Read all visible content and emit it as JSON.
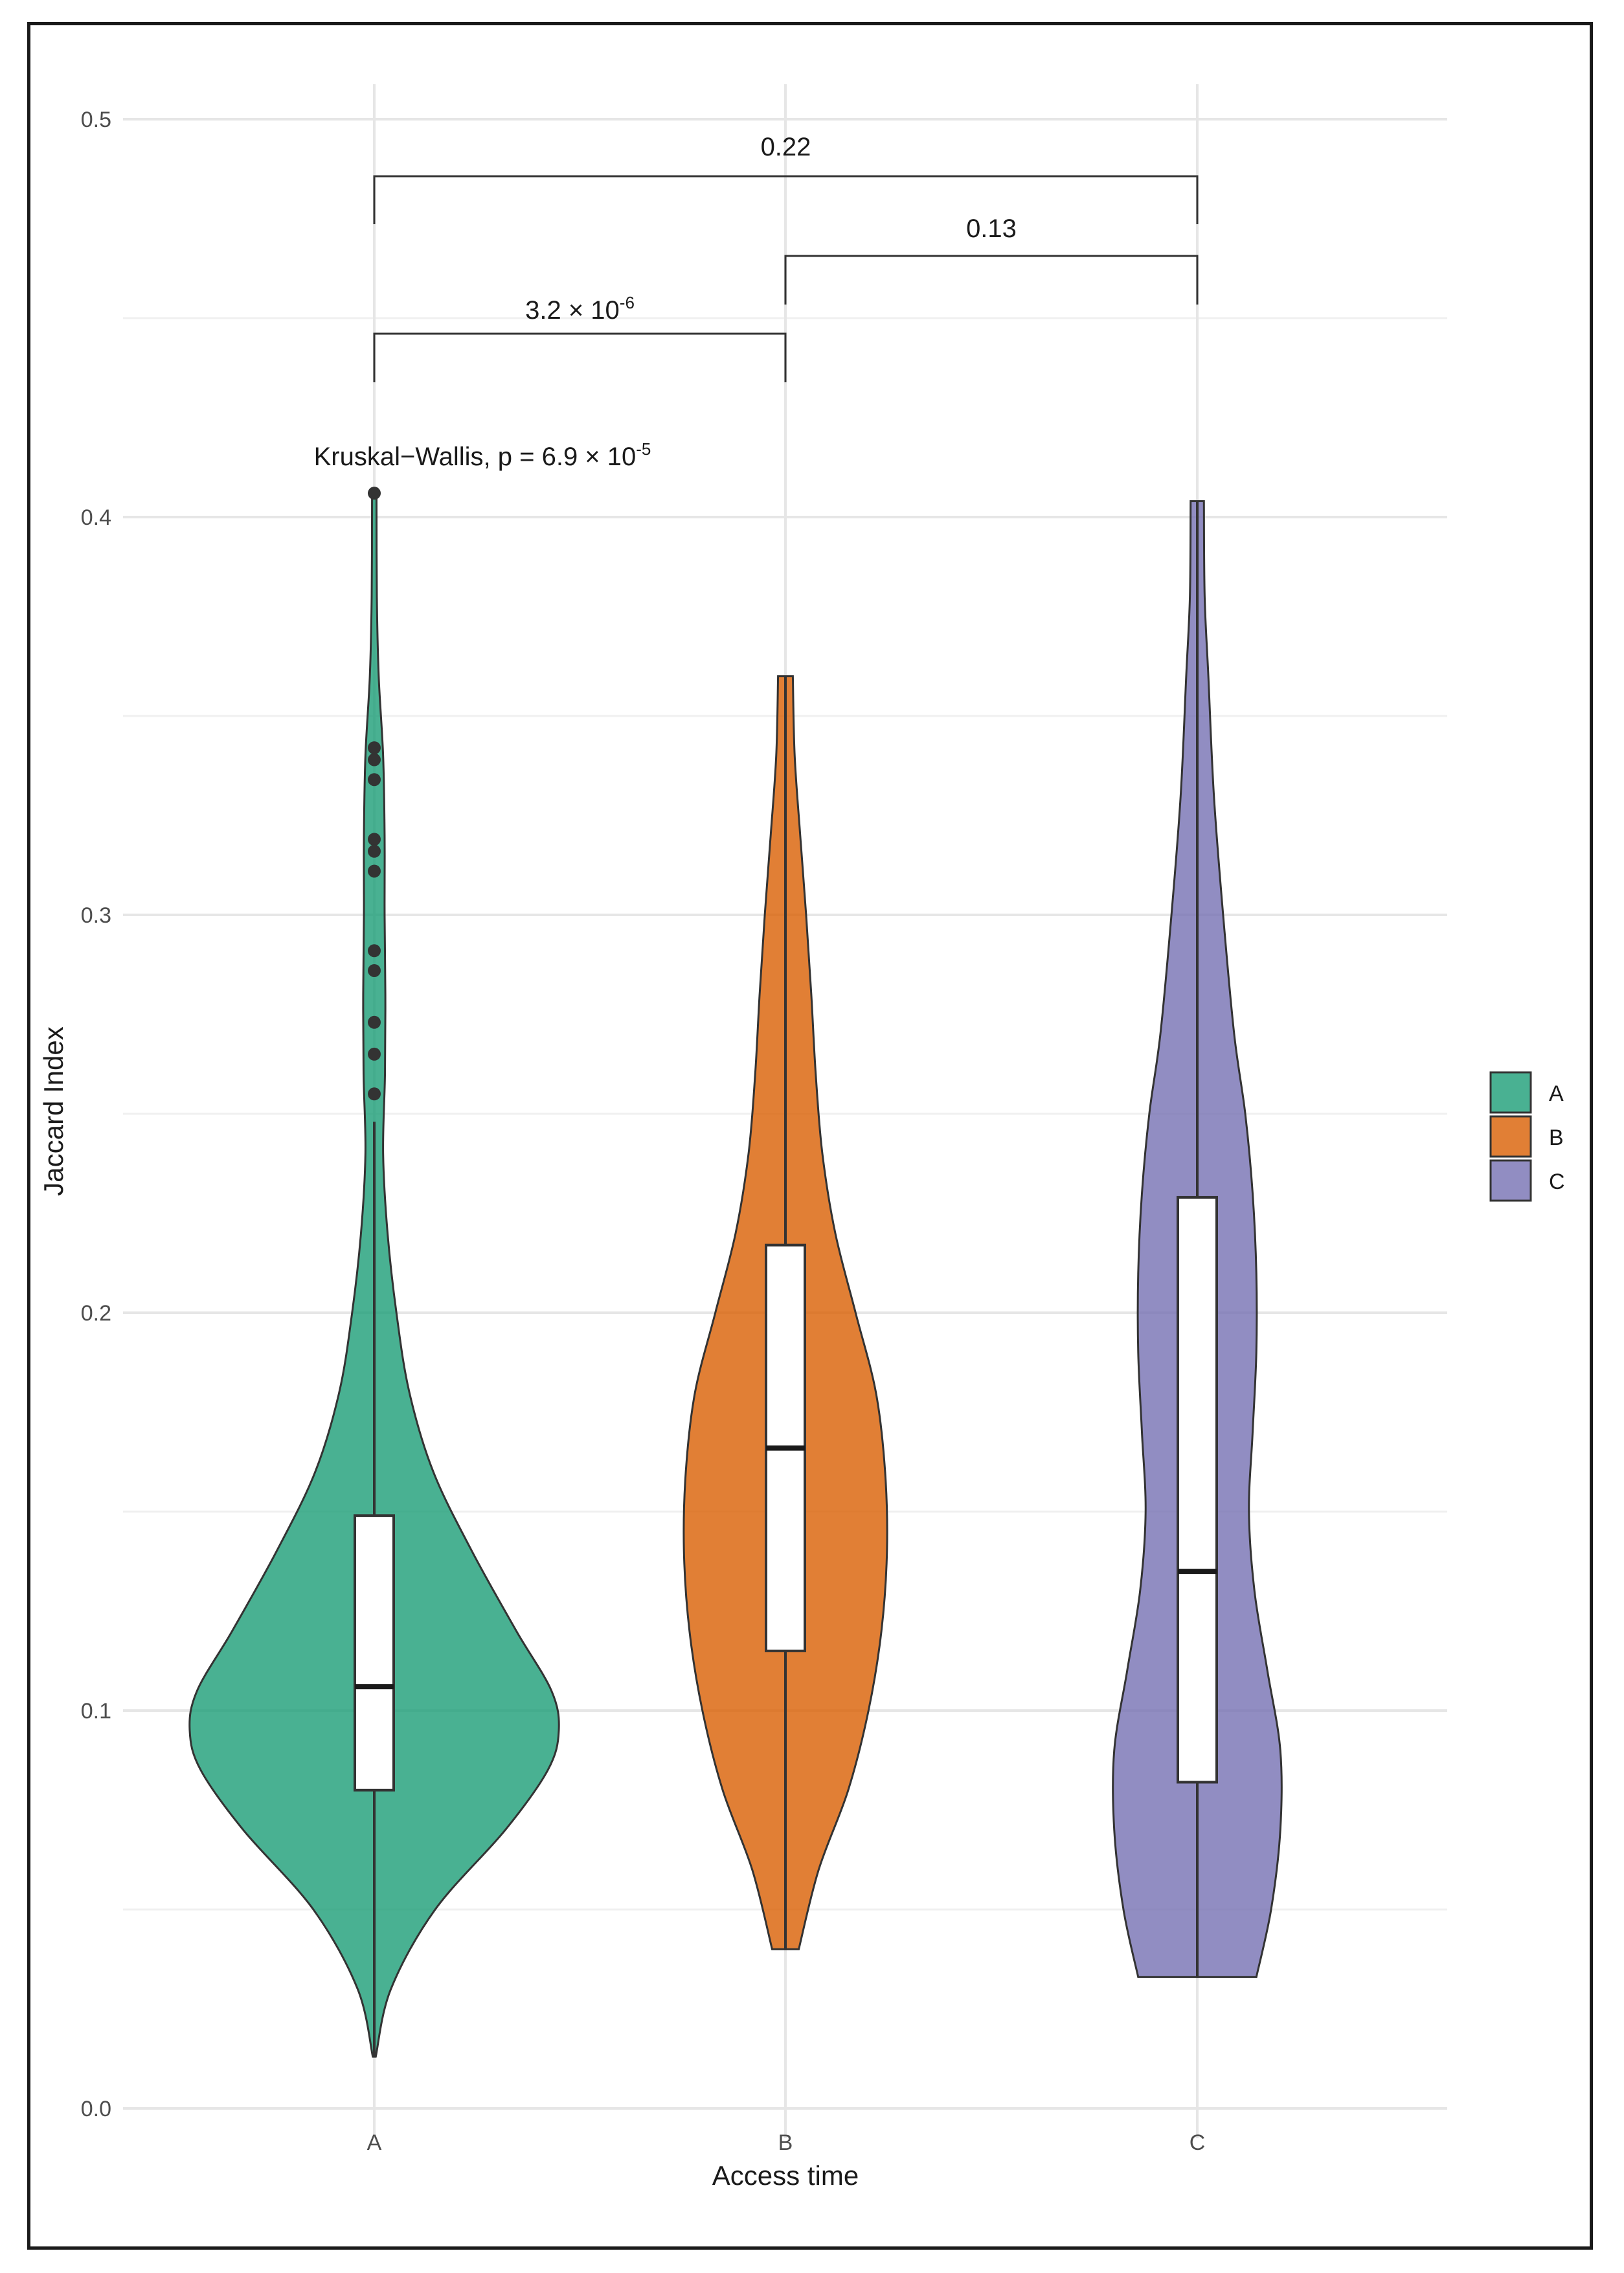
{
  "chart_data": {
    "type": "violin",
    "xlabel": "Access time",
    "ylabel": "Jaccard Index",
    "ylim": [
      0,
      0.5
    ],
    "yticks": [
      "0.0",
      "0.1",
      "0.2",
      "0.3",
      "0.4",
      "0.5"
    ],
    "categories": [
      "A",
      "B",
      "C"
    ],
    "colors": {
      "A": "#1b9e77",
      "B": "#d95f02",
      "C": "#7570b3"
    },
    "series": [
      {
        "name": "A",
        "min": 0.013,
        "max": 0.406,
        "box": {
          "q1": 0.08,
          "median": 0.106,
          "q3": 0.149,
          "whisker_low": 0.013,
          "whisker_high": 0.248
        },
        "outliers": [
          0.406,
          0.342,
          0.339,
          0.334,
          0.319,
          0.316,
          0.311,
          0.291,
          0.286,
          0.273,
          0.265,
          0.255
        ],
        "density": [
          [
            0.013,
            0.004
          ],
          [
            0.03,
            0.045
          ],
          [
            0.05,
            0.165
          ],
          [
            0.07,
            0.355
          ],
          [
            0.085,
            0.47
          ],
          [
            0.095,
            0.5
          ],
          [
            0.105,
            0.48
          ],
          [
            0.12,
            0.385
          ],
          [
            0.14,
            0.265
          ],
          [
            0.16,
            0.16
          ],
          [
            0.18,
            0.095
          ],
          [
            0.2,
            0.06
          ],
          [
            0.22,
            0.036
          ],
          [
            0.24,
            0.024
          ],
          [
            0.26,
            0.029
          ],
          [
            0.28,
            0.03
          ],
          [
            0.3,
            0.028
          ],
          [
            0.32,
            0.028
          ],
          [
            0.34,
            0.024
          ],
          [
            0.36,
            0.012
          ],
          [
            0.38,
            0.007
          ],
          [
            0.406,
            0.006
          ]
        ]
      },
      {
        "name": "B",
        "min": 0.04,
        "max": 0.36,
        "box": {
          "q1": 0.115,
          "median": 0.166,
          "q3": 0.217,
          "whisker_low": 0.04,
          "whisker_high": 0.36
        },
        "outliers": [],
        "density": [
          [
            0.04,
            0.036
          ],
          [
            0.06,
            0.09
          ],
          [
            0.08,
            0.17
          ],
          [
            0.1,
            0.225
          ],
          [
            0.12,
            0.26
          ],
          [
            0.14,
            0.275
          ],
          [
            0.16,
            0.27
          ],
          [
            0.18,
            0.245
          ],
          [
            0.2,
            0.19
          ],
          [
            0.22,
            0.135
          ],
          [
            0.24,
            0.1
          ],
          [
            0.26,
            0.082
          ],
          [
            0.28,
            0.07
          ],
          [
            0.3,
            0.056
          ],
          [
            0.32,
            0.04
          ],
          [
            0.34,
            0.025
          ],
          [
            0.36,
            0.02
          ]
        ]
      },
      {
        "name": "C",
        "min": 0.033,
        "max": 0.404,
        "box": {
          "q1": 0.082,
          "median": 0.135,
          "q3": 0.229,
          "whisker_low": 0.033,
          "whisker_high": 0.404
        },
        "outliers": [],
        "density": [
          [
            0.033,
            0.16
          ],
          [
            0.05,
            0.2
          ],
          [
            0.07,
            0.225
          ],
          [
            0.09,
            0.225
          ],
          [
            0.11,
            0.19
          ],
          [
            0.13,
            0.155
          ],
          [
            0.15,
            0.14
          ],
          [
            0.17,
            0.15
          ],
          [
            0.19,
            0.16
          ],
          [
            0.21,
            0.16
          ],
          [
            0.23,
            0.15
          ],
          [
            0.25,
            0.13
          ],
          [
            0.27,
            0.1
          ],
          [
            0.3,
            0.07
          ],
          [
            0.33,
            0.045
          ],
          [
            0.36,
            0.03
          ],
          [
            0.38,
            0.02
          ],
          [
            0.404,
            0.018
          ]
        ]
      }
    ],
    "comparisons": [
      {
        "from": "A",
        "to": "B",
        "label_base": "3.2 × 10",
        "label_exp": "-6"
      },
      {
        "from": "B",
        "to": "C",
        "label_base": "0.13",
        "label_exp": ""
      },
      {
        "from": "A",
        "to": "C",
        "label_base": "0.22",
        "label_exp": ""
      }
    ],
    "global_test": {
      "label_base": "Kruskal−Wallis, p = 6.9 × 10",
      "label_exp": "-5"
    },
    "legend": {
      "entries": [
        "A",
        "B",
        "C"
      ],
      "position": "right"
    },
    "grid": true
  }
}
